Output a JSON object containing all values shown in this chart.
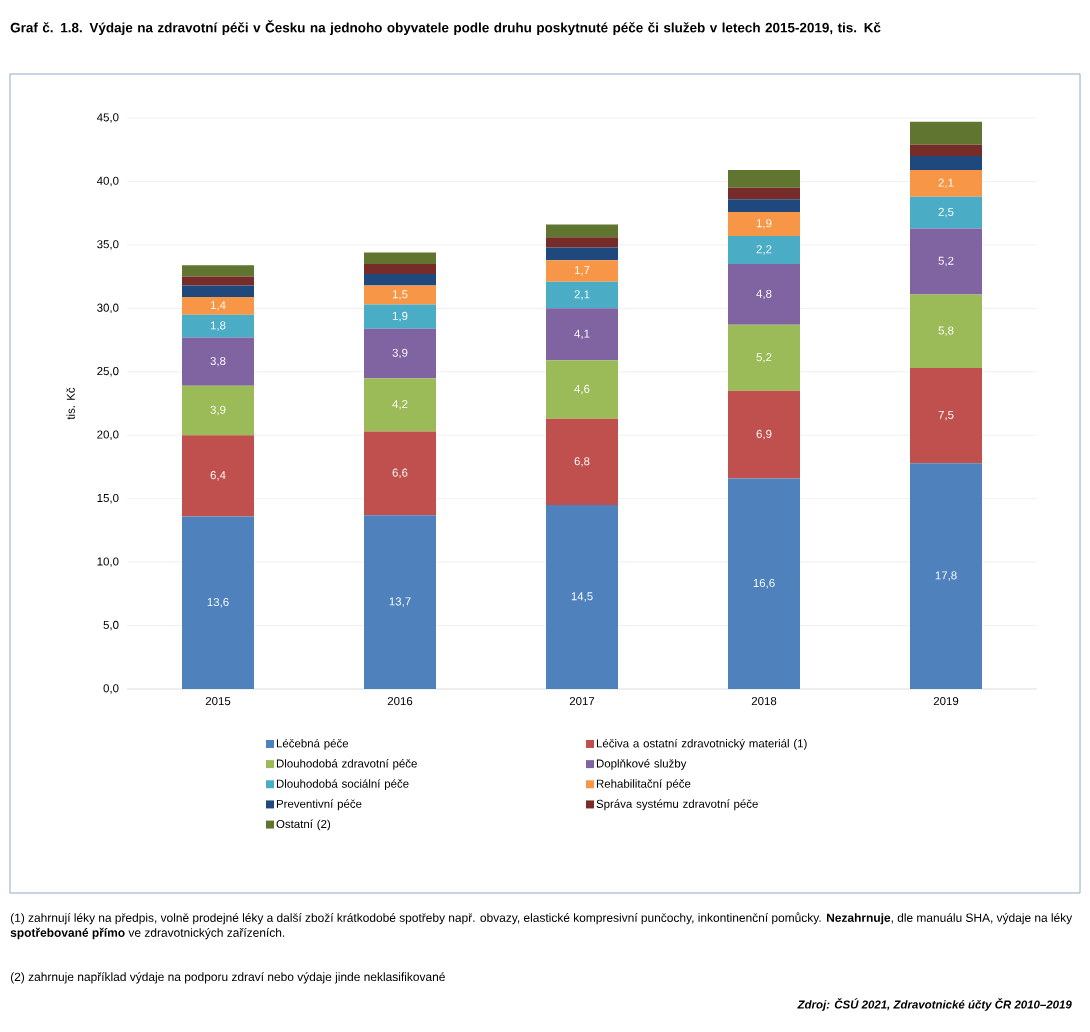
{
  "chart_data": {
    "type": "bar",
    "stacked": true,
    "title": "Graf č. 1.8. Výdaje na zdravotní péči v Česku na jednoho obyvatele podle druhu poskytnuté péče či služeb v letech 2015-2019, tis. Kč",
    "ylabel": "tis. Kč",
    "categories": [
      "2015",
      "2016",
      "2017",
      "2018",
      "2019"
    ],
    "series": [
      {
        "name": "Léčebná péče",
        "color": "#4f81bd",
        "values": [
          13.6,
          13.7,
          14.5,
          16.6,
          17.8
        ],
        "value_labels": [
          "13,6",
          "13,7",
          "14,5",
          "16,6",
          "17,8"
        ]
      },
      {
        "name": "Léčiva a ostatní zdravotnický materiál (1)",
        "color": "#c0504d",
        "values": [
          6.4,
          6.6,
          6.8,
          6.9,
          7.5
        ],
        "value_labels": [
          "6,4",
          "6,6",
          "6,8",
          "6,9",
          "7,5"
        ]
      },
      {
        "name": "Dlouhodobá zdravotní péče",
        "color": "#9bbb59",
        "values": [
          3.9,
          4.2,
          4.6,
          5.2,
          5.8
        ],
        "value_labels": [
          "3,9",
          "4,2",
          "4,6",
          "5,2",
          "5,8"
        ]
      },
      {
        "name": "Doplňkové služby",
        "color": "#8064a2",
        "values": [
          3.8,
          3.9,
          4.1,
          4.8,
          5.2
        ],
        "value_labels": [
          "3,8",
          "3,9",
          "4,1",
          "4,8",
          "5,2"
        ]
      },
      {
        "name": "Dlouhodobá sociální péče",
        "color": "#4bacc6",
        "values": [
          1.8,
          1.9,
          2.1,
          2.2,
          2.5
        ],
        "value_labels": [
          "1,8",
          "1,9",
          "2,1",
          "2,2",
          "2,5"
        ]
      },
      {
        "name": "Rehabilitační péče",
        "color": "#f79646",
        "values": [
          1.4,
          1.5,
          1.7,
          1.9,
          2.1
        ],
        "value_labels": [
          "1,4",
          "1,5",
          "1,7",
          "1,9",
          "2,1"
        ]
      },
      {
        "name": "Preventivní péče",
        "color": "#1f497d",
        "values": [
          0.9,
          0.9,
          1.0,
          1.0,
          1.1
        ]
      },
      {
        "name": "Správa systému zdravotní péče",
        "color": "#772c2a",
        "values": [
          0.7,
          0.8,
          0.8,
          0.9,
          0.9
        ]
      },
      {
        "name": "Ostatní (2)",
        "color": "#5f7530",
        "values": [
          0.9,
          0.9,
          1.0,
          1.4,
          1.8
        ]
      }
    ],
    "ylim": [
      0,
      45
    ],
    "yticks": [
      {
        "value": 0,
        "label": "0,0"
      },
      {
        "value": 5,
        "label": "5,0"
      },
      {
        "value": 10,
        "label": "10,0"
      },
      {
        "value": 15,
        "label": "15,0"
      },
      {
        "value": 20,
        "label": "20,0"
      },
      {
        "value": 25,
        "label": "25,0"
      },
      {
        "value": 30,
        "label": "30,0"
      },
      {
        "value": 35,
        "label": "35,0"
      },
      {
        "value": 40,
        "label": "40,0"
      },
      {
        "value": 45,
        "label": "45,0"
      }
    ],
    "grid": "y",
    "legend": "bottom",
    "annotations": [
      "(1) zahrnují léky na předpis, volně prodejné léky a další zboží krátkodobé spotřeby např. obvazy, elastické kompresivní punčochy, inkontinenční pomůcky. **Nezahrnuje**, dle manuálu SHA, výdaje na léky **spotřebované přímo** ve zdravotnických zařízeních.",
      "(2) zahrnuje například výdaje na podporu zdraví nebo výdaje jinde neklasifikované",
      "Zdroj: ČSÚ 2021, Zdravotnické účty ČR 2010–2019"
    ]
  }
}
